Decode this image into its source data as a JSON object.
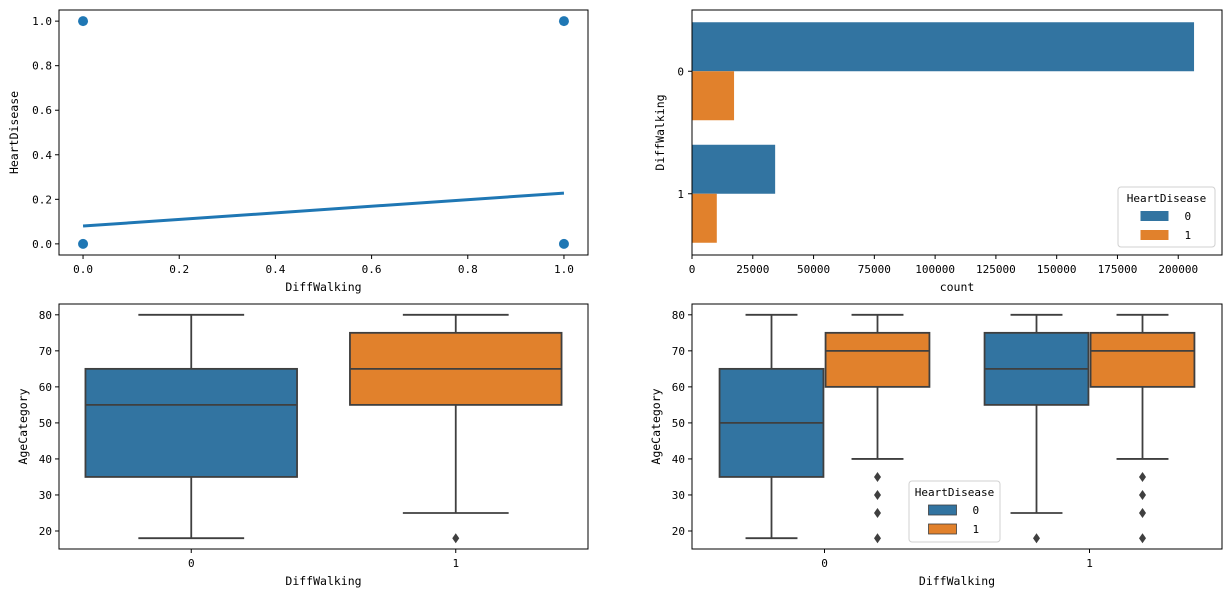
{
  "colors": {
    "blue": "#1f77b4",
    "blue_muted": "#3274a1",
    "orange": "#ff7f0e",
    "orange_muted": "#e1812c",
    "box_edge": "#3f3f3f"
  },
  "chart_data": [
    {
      "id": "regplot",
      "type": "scatter",
      "title": "",
      "xlabel": "DiffWalking",
      "ylabel": "HeartDisease",
      "xlim": [
        -0.05,
        1.05
      ],
      "ylim": [
        -0.05,
        1.05
      ],
      "xticks": [
        0.0,
        0.2,
        0.4,
        0.6,
        0.8,
        1.0
      ],
      "xtick_labels": [
        "0.0",
        "0.2",
        "0.4",
        "0.6",
        "0.8",
        "1.0"
      ],
      "yticks": [
        0.0,
        0.2,
        0.4,
        0.6,
        0.8,
        1.0
      ],
      "ytick_labels": [
        "0.0",
        "0.2",
        "0.4",
        "0.6",
        "0.8",
        "1.0"
      ],
      "points": [
        {
          "x": 0,
          "y": 0
        },
        {
          "x": 0,
          "y": 1
        },
        {
          "x": 1,
          "y": 0
        },
        {
          "x": 1,
          "y": 1
        }
      ],
      "regression_line": {
        "x": [
          0,
          1
        ],
        "y": [
          0.08,
          0.228
        ]
      },
      "grid": false
    },
    {
      "id": "countplot",
      "type": "bar",
      "orientation": "horizontal",
      "title": "",
      "xlabel": "count",
      "ylabel": "DiffWalking",
      "categories": [
        "0",
        "1"
      ],
      "series": [
        {
          "name": "0",
          "values": [
            206500,
            34200
          ]
        },
        {
          "name": "1",
          "values": [
            17300,
            10200
          ]
        }
      ],
      "xlim": [
        0,
        218000
      ],
      "xticks": [
        0,
        25000,
        50000,
        75000,
        100000,
        125000,
        150000,
        175000,
        200000
      ],
      "xtick_labels": [
        "0",
        "25000",
        "50000",
        "75000",
        "100000",
        "125000",
        "150000",
        "175000",
        "200000"
      ],
      "legend": {
        "title": "HeartDisease",
        "entries": [
          "0",
          "1"
        ],
        "placement": "lower-right"
      },
      "grid": false
    },
    {
      "id": "boxplot-simple",
      "type": "box",
      "title": "",
      "xlabel": "DiffWalking",
      "ylabel": "AgeCategory",
      "categories": [
        "0",
        "1"
      ],
      "ylim": [
        15,
        83
      ],
      "yticks": [
        20,
        30,
        40,
        50,
        60,
        70,
        80
      ],
      "ytick_labels": [
        "20",
        "30",
        "40",
        "50",
        "60",
        "70",
        "80"
      ],
      "boxes": [
        {
          "category": "0",
          "whisker_low": 18,
          "q1": 35,
          "median": 55,
          "q3": 65,
          "whisker_high": 80,
          "outliers": []
        },
        {
          "category": "1",
          "whisker_low": 25,
          "q1": 55,
          "median": 65,
          "q3": 75,
          "whisker_high": 80,
          "outliers": [
            18
          ]
        }
      ],
      "grid": false
    },
    {
      "id": "boxplot-hue",
      "type": "box",
      "title": "",
      "xlabel": "DiffWalking",
      "ylabel": "AgeCategory",
      "categories": [
        "0",
        "1"
      ],
      "ylim": [
        15,
        83
      ],
      "yticks": [
        20,
        30,
        40,
        50,
        60,
        70,
        80
      ],
      "ytick_labels": [
        "20",
        "30",
        "40",
        "50",
        "60",
        "70",
        "80"
      ],
      "series": [
        {
          "name": "0",
          "boxes": [
            {
              "category": "0",
              "whisker_low": 18,
              "q1": 35,
              "median": 50,
              "q3": 65,
              "whisker_high": 80,
              "outliers": []
            },
            {
              "category": "1",
              "whisker_low": 25,
              "q1": 55,
              "median": 65,
              "q3": 75,
              "whisker_high": 80,
              "outliers": [
                18
              ]
            }
          ]
        },
        {
          "name": "1",
          "boxes": [
            {
              "category": "0",
              "whisker_low": 40,
              "q1": 60,
              "median": 70,
              "q3": 75,
              "whisker_high": 80,
              "outliers": [
                35,
                30,
                25,
                18
              ]
            },
            {
              "category": "1",
              "whisker_low": 40,
              "q1": 60,
              "median": 70,
              "q3": 75,
              "whisker_high": 80,
              "outliers": [
                35,
                30,
                25,
                18
              ]
            }
          ]
        }
      ],
      "legend": {
        "title": "HeartDisease",
        "entries": [
          "0",
          "1"
        ],
        "placement": "lower-center"
      },
      "grid": false
    }
  ]
}
